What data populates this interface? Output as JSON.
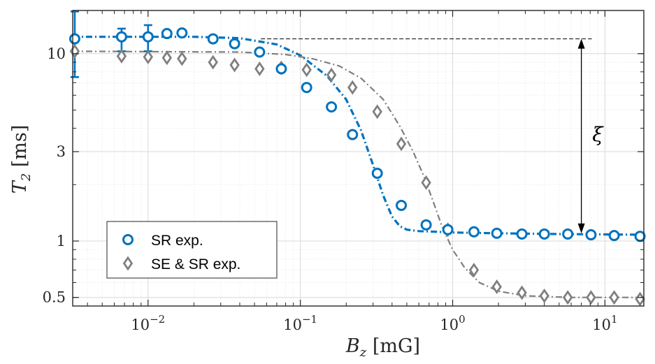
{
  "chart_data": {
    "type": "scatter",
    "xscale": "log",
    "yscale": "log",
    "xlim": [
      0.0032,
      18
    ],
    "ylim": [
      0.45,
      17
    ],
    "x_ticks": [
      {
        "value": 0.01,
        "base": "10",
        "exp": "−2"
      },
      {
        "value": 0.1,
        "base": "10",
        "exp": "−1"
      },
      {
        "value": 1,
        "base": "10",
        "exp": "0"
      },
      {
        "value": 10,
        "base": "10",
        "exp": "1"
      }
    ],
    "y_ticks": [
      {
        "value": 0.5,
        "label": "0.5"
      },
      {
        "value": 1,
        "label": "1"
      },
      {
        "value": 3,
        "label": "3"
      },
      {
        "value": 10,
        "label": "10"
      }
    ],
    "xlabel": {
      "var": "B",
      "sub": "z",
      "unit": " [mG]"
    },
    "ylabel": {
      "var": "T",
      "sub": "2",
      "unit": " [ms]"
    },
    "annotation": {
      "text": "ξ",
      "x": 7,
      "y_from": 12,
      "y_to": 1.1,
      "dashed_from_x": 0.055,
      "dashed_y": 12
    },
    "legend_position": "bottom-left",
    "series": [
      {
        "name": "SR exp.",
        "marker": "circle",
        "color": "#0072bd",
        "x": [
          0.0033,
          0.0067,
          0.01,
          0.0133,
          0.0167,
          0.0267,
          0.037,
          0.054,
          0.075,
          0.11,
          0.16,
          0.22,
          0.32,
          0.46,
          0.67,
          0.93,
          1.38,
          1.95,
          2.85,
          4.0,
          5.7,
          8.1,
          11.5,
          17.0
        ],
        "y": [
          12.0,
          12.3,
          12.3,
          12.8,
          12.9,
          12.0,
          11.3,
          10.2,
          8.3,
          6.6,
          5.2,
          3.7,
          2.3,
          1.55,
          1.22,
          1.15,
          1.12,
          1.1,
          1.09,
          1.09,
          1.09,
          1.08,
          1.07,
          1.06
        ],
        "err_low": [
          7.5,
          10.3,
          10.3,
          null,
          null,
          null,
          null,
          null,
          null,
          null,
          null,
          null,
          null,
          null,
          null,
          null,
          null,
          null,
          null,
          null,
          null,
          null,
          null,
          null
        ],
        "err_high": [
          16.8,
          13.6,
          14.2,
          null,
          null,
          null,
          null,
          null,
          null,
          null,
          null,
          null,
          null,
          null,
          null,
          null,
          null,
          null,
          null,
          null,
          null,
          null,
          null,
          null
        ],
        "fit": {
          "style": "dash-dot",
          "x": [
            0.0032,
            0.02,
            0.04,
            0.07,
            0.1,
            0.15,
            0.2,
            0.25,
            0.3,
            0.35,
            0.4,
            0.45,
            0.5,
            0.6,
            0.8,
            1.0,
            2.0,
            5.0,
            18.0
          ],
          "y": [
            12.3,
            12.3,
            12.1,
            11.2,
            9.8,
            7.6,
            5.7,
            3.9,
            2.55,
            1.75,
            1.35,
            1.2,
            1.15,
            1.13,
            1.12,
            1.11,
            1.1,
            1.09,
            1.08
          ]
        }
      },
      {
        "name": "SE & SR exp.",
        "marker": "diamond",
        "color": "#7f7f7f",
        "x": [
          0.0033,
          0.0067,
          0.01,
          0.0133,
          0.0167,
          0.0267,
          0.037,
          0.054,
          0.075,
          0.11,
          0.16,
          0.22,
          0.32,
          0.46,
          0.67,
          0.93,
          1.38,
          1.95,
          2.85,
          4.0,
          5.7,
          8.1,
          11.5,
          17.0
        ],
        "y": [
          10.3,
          9.7,
          9.6,
          9.5,
          9.4,
          9.0,
          8.7,
          8.3,
          8.4,
          8.2,
          7.7,
          6.6,
          4.9,
          3.3,
          2.05,
          1.15,
          0.7,
          0.57,
          0.53,
          0.51,
          0.5,
          0.5,
          0.5,
          0.49
        ],
        "fit": {
          "style": "dash-dot",
          "x": [
            0.0032,
            0.04,
            0.08,
            0.12,
            0.18,
            0.25,
            0.35,
            0.45,
            0.55,
            0.65,
            0.75,
            0.85,
            1.0,
            1.2,
            1.5,
            2.0,
            3.0,
            6.0,
            18.0
          ],
          "y": [
            10.3,
            10.2,
            9.9,
            9.4,
            8.6,
            7.4,
            5.7,
            4.1,
            3.0,
            2.2,
            1.6,
            1.2,
            0.9,
            0.72,
            0.6,
            0.54,
            0.51,
            0.5,
            0.5
          ]
        }
      }
    ]
  }
}
